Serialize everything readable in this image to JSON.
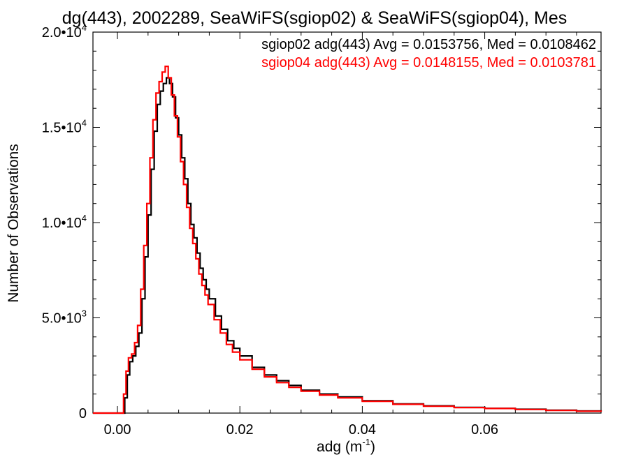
{
  "chart_data": {
    "type": "line",
    "title": "dg(443), 2002289, SeaWiFS(sgiop02) & SeaWiFS(sgiop04), Mes",
    "xlabel": "adg (m",
    "xlabel_sup": "-1",
    "xlabel_close": ")",
    "ylabel": "Number of Observations",
    "xlim": [
      -0.004,
      0.079
    ],
    "ylim": [
      0,
      20000
    ],
    "grid": false,
    "legend_position": "top-right",
    "x_ticks": [
      {
        "value": 0.0,
        "label": "0.00"
      },
      {
        "value": 0.02,
        "label": "0.02"
      },
      {
        "value": 0.04,
        "label": "0.04"
      },
      {
        "value": 0.06,
        "label": "0.06"
      }
    ],
    "y_ticks": [
      {
        "value": 0,
        "mantissa": "0",
        "exp": ""
      },
      {
        "value": 5000,
        "mantissa": "5.0•10",
        "exp": "3"
      },
      {
        "value": 10000,
        "mantissa": "1.0•10",
        "exp": "4"
      },
      {
        "value": 15000,
        "mantissa": "1.5•10",
        "exp": "4"
      },
      {
        "value": 20000,
        "mantissa": "2.0•10",
        "exp": "4"
      }
    ],
    "series": [
      {
        "name": "sgiop02 adg(443) Avg = 0.0153756, Med = 0.0108462",
        "color": "#000000",
        "x": [
          -0.004,
          0.0008,
          0.0012,
          0.0016,
          0.002,
          0.0025,
          0.003,
          0.0035,
          0.004,
          0.0045,
          0.005,
          0.0055,
          0.006,
          0.0065,
          0.007,
          0.0075,
          0.008,
          0.0085,
          0.009,
          0.0095,
          0.01,
          0.0105,
          0.011,
          0.0115,
          0.012,
          0.0125,
          0.013,
          0.0135,
          0.014,
          0.0145,
          0.015,
          0.016,
          0.017,
          0.018,
          0.019,
          0.02,
          0.022,
          0.024,
          0.026,
          0.028,
          0.03,
          0.033,
          0.036,
          0.04,
          0.045,
          0.05,
          0.055,
          0.06,
          0.065,
          0.07,
          0.075,
          0.079
        ],
        "y": [
          0,
          0,
          800,
          2000,
          2700,
          3000,
          3500,
          4200,
          6000,
          8200,
          10400,
          12800,
          14800,
          16200,
          16900,
          17300,
          17600,
          17300,
          16600,
          15500,
          14600,
          13400,
          12300,
          11000,
          9900,
          9200,
          8400,
          7600,
          7000,
          6500,
          6000,
          5100,
          4400,
          3800,
          3400,
          3000,
          2400,
          2000,
          1700,
          1450,
          1200,
          1000,
          850,
          650,
          480,
          380,
          300,
          250,
          200,
          150,
          110,
          80
        ]
      },
      {
        "name": "sgiop04 adg(443) Avg = 0.0148155, Med = 0.0103781",
        "color": "#ff0000",
        "x": [
          -0.004,
          0.0006,
          0.001,
          0.0014,
          0.0018,
          0.0023,
          0.0028,
          0.0033,
          0.0038,
          0.0043,
          0.0048,
          0.0053,
          0.0058,
          0.0063,
          0.0068,
          0.0073,
          0.0078,
          0.0083,
          0.0088,
          0.0093,
          0.0098,
          0.0103,
          0.0108,
          0.0113,
          0.0118,
          0.0123,
          0.0128,
          0.0133,
          0.0138,
          0.0143,
          0.0148,
          0.0158,
          0.0168,
          0.0178,
          0.0188,
          0.02,
          0.022,
          0.024,
          0.026,
          0.028,
          0.03,
          0.033,
          0.036,
          0.04,
          0.045,
          0.05,
          0.055,
          0.06,
          0.065,
          0.07,
          0.075,
          0.079
        ],
        "y": [
          0,
          0,
          1000,
          2200,
          2900,
          3100,
          3700,
          4600,
          6500,
          8800,
          11000,
          13400,
          15400,
          16800,
          17400,
          17900,
          18200,
          17600,
          16700,
          15600,
          14500,
          13200,
          12000,
          10800,
          9700,
          8900,
          8100,
          7300,
          6700,
          6200,
          5700,
          4900,
          4200,
          3600,
          3200,
          2800,
          2300,
          1900,
          1600,
          1350,
          1150,
          950,
          800,
          620,
          460,
          360,
          290,
          240,
          190,
          140,
          100,
          75
        ]
      }
    ]
  }
}
